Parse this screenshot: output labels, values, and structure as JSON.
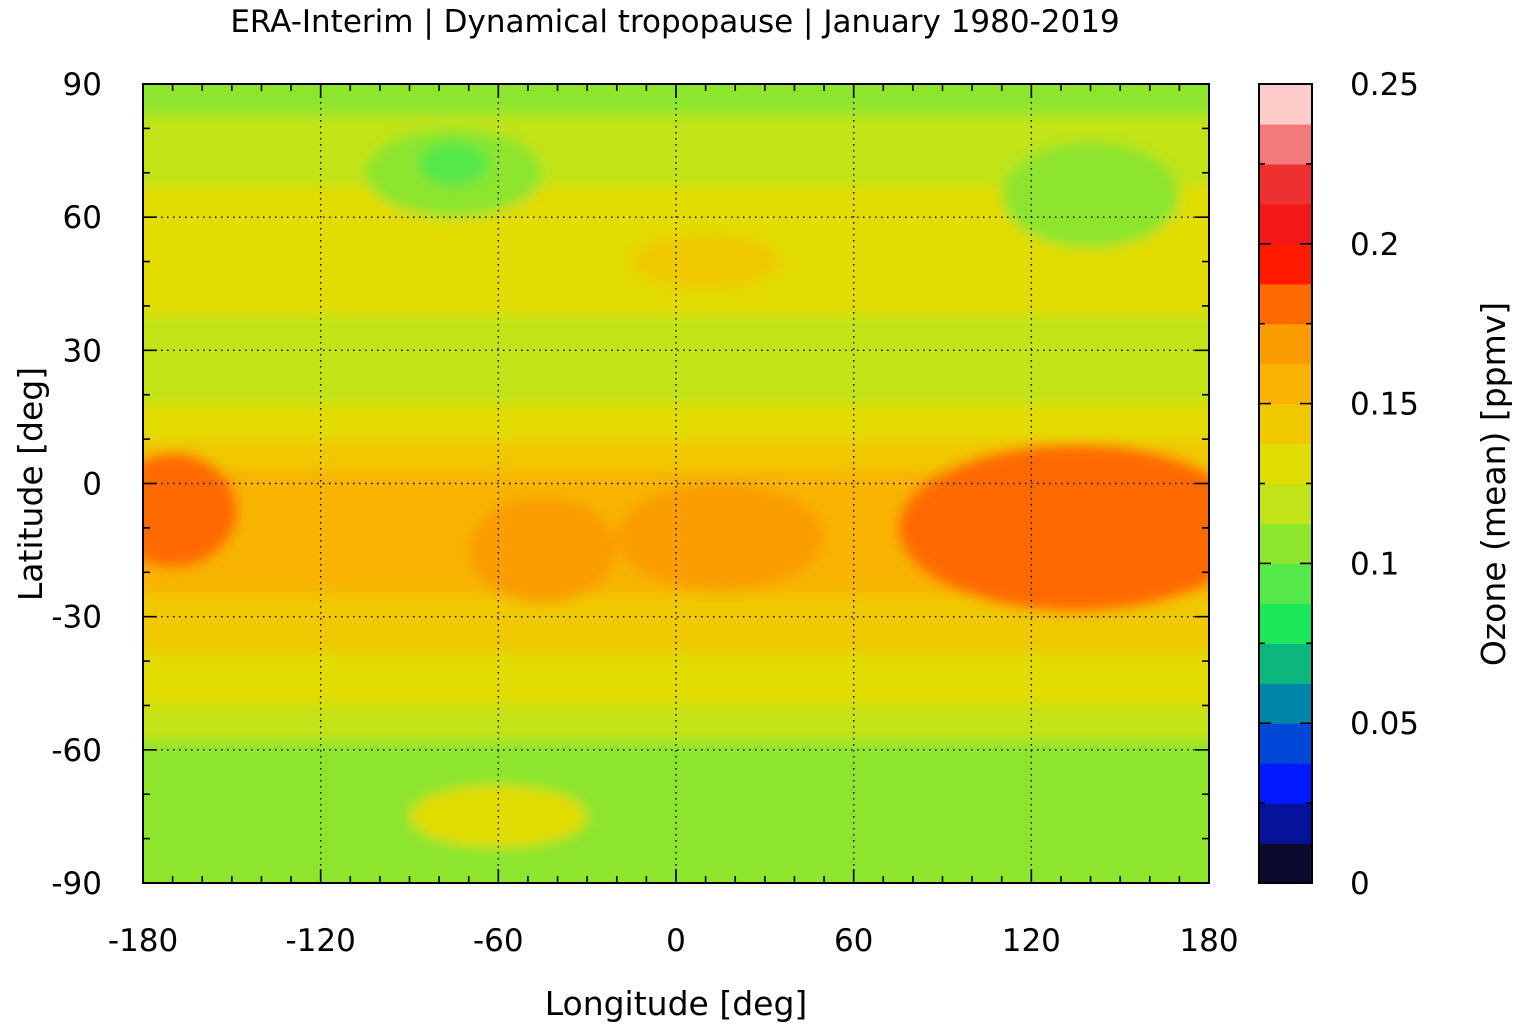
{
  "chart_data": {
    "type": "heatmap",
    "title": "ERA-Interim | Dynamical tropopause | January 1980-2019",
    "xlabel": "Longitude [deg]",
    "ylabel": "Latitude [deg]",
    "colorbar_label": "Ozone (mean) [ppmv]",
    "xlim": [
      -180,
      180
    ],
    "ylim": [
      -90,
      90
    ],
    "x_ticks": [
      -180,
      -120,
      -60,
      0,
      60,
      120,
      180
    ],
    "y_ticks": [
      90,
      60,
      30,
      0,
      -30,
      -60,
      -90
    ],
    "x_tick_labels": [
      "-180",
      "-120",
      "-60",
      "0",
      "60",
      "120",
      "180"
    ],
    "y_tick_labels": [
      "90",
      "60",
      "30",
      "0",
      "-30",
      "-60",
      "-90"
    ],
    "colorbar_range": [
      0,
      0.25
    ],
    "colorbar_ticks": [
      0,
      0.05,
      0.1,
      0.15,
      0.2,
      0.25
    ],
    "colorbar_tick_labels": [
      "0",
      "0.05",
      "0.1",
      "0.15",
      "0.2",
      "0.25"
    ],
    "grid": true,
    "colorbar_levels": [
      "#0b0b2e",
      "#07129a",
      "#0019ff",
      "#0048d8",
      "#0085a8",
      "#0bb67f",
      "#1ce85a",
      "#55e84a",
      "#8de52e",
      "#c2e317",
      "#e2dc05",
      "#f0c800",
      "#f8b400",
      "#fa9d00",
      "#ff6a00",
      "#ff1a00",
      "#f51818",
      "#ee3030",
      "#f47a7a",
      "#ffcccc"
    ],
    "field_bands": [
      {
        "lat": [
          90,
          83
        ],
        "value": 0.103
      },
      {
        "lat": [
          83,
          75
        ],
        "value": 0.113
      },
      {
        "lat": [
          75,
          67
        ],
        "value": 0.118
      },
      {
        "lat": [
          67,
          58
        ],
        "value": 0.125
      },
      {
        "lat": [
          58,
          48
        ],
        "value": 0.132
      },
      {
        "lat": [
          48,
          38
        ],
        "value": 0.128
      },
      {
        "lat": [
          38,
          28
        ],
        "value": 0.118
      },
      {
        "lat": [
          28,
          18
        ],
        "value": 0.122
      },
      {
        "lat": [
          18,
          10
        ],
        "value": 0.132
      },
      {
        "lat": [
          10,
          3
        ],
        "value": 0.145
      },
      {
        "lat": [
          3,
          -12
        ],
        "value": 0.158
      },
      {
        "lat": [
          -12,
          -25
        ],
        "value": 0.155
      },
      {
        "lat": [
          -25,
          -38
        ],
        "value": 0.145
      },
      {
        "lat": [
          -38,
          -50
        ],
        "value": 0.135
      },
      {
        "lat": [
          -50,
          -58
        ],
        "value": 0.122
      },
      {
        "lat": [
          -58,
          -90
        ],
        "value": 0.105
      }
    ],
    "field_features": [
      {
        "lon": 140,
        "lat": -12,
        "rx": 45,
        "ry": 13,
        "value": 0.2
      },
      {
        "lon": 135,
        "lat": -10,
        "rx": 60,
        "ry": 19,
        "value": 0.178
      },
      {
        "lon": -172,
        "lat": -4,
        "rx": 14,
        "ry": 8,
        "value": 0.2
      },
      {
        "lon": -170,
        "lat": -6,
        "rx": 22,
        "ry": 13,
        "value": 0.178
      },
      {
        "lon": -45,
        "lat": -15,
        "rx": 25,
        "ry": 12,
        "value": 0.168
      },
      {
        "lon": 15,
        "lat": -12,
        "rx": 35,
        "ry": 12,
        "value": 0.168
      },
      {
        "lon": -75,
        "lat": 70,
        "rx": 30,
        "ry": 10,
        "value": 0.1
      },
      {
        "lon": -75,
        "lat": 72,
        "rx": 12,
        "ry": 5,
        "value": 0.092
      },
      {
        "lon": 140,
        "lat": 65,
        "rx": 30,
        "ry": 12,
        "value": 0.105
      },
      {
        "lon": 10,
        "lat": 50,
        "rx": 25,
        "ry": 6,
        "value": 0.145
      },
      {
        "lon": -60,
        "lat": -75,
        "rx": 30,
        "ry": 7,
        "value": 0.125
      }
    ]
  }
}
